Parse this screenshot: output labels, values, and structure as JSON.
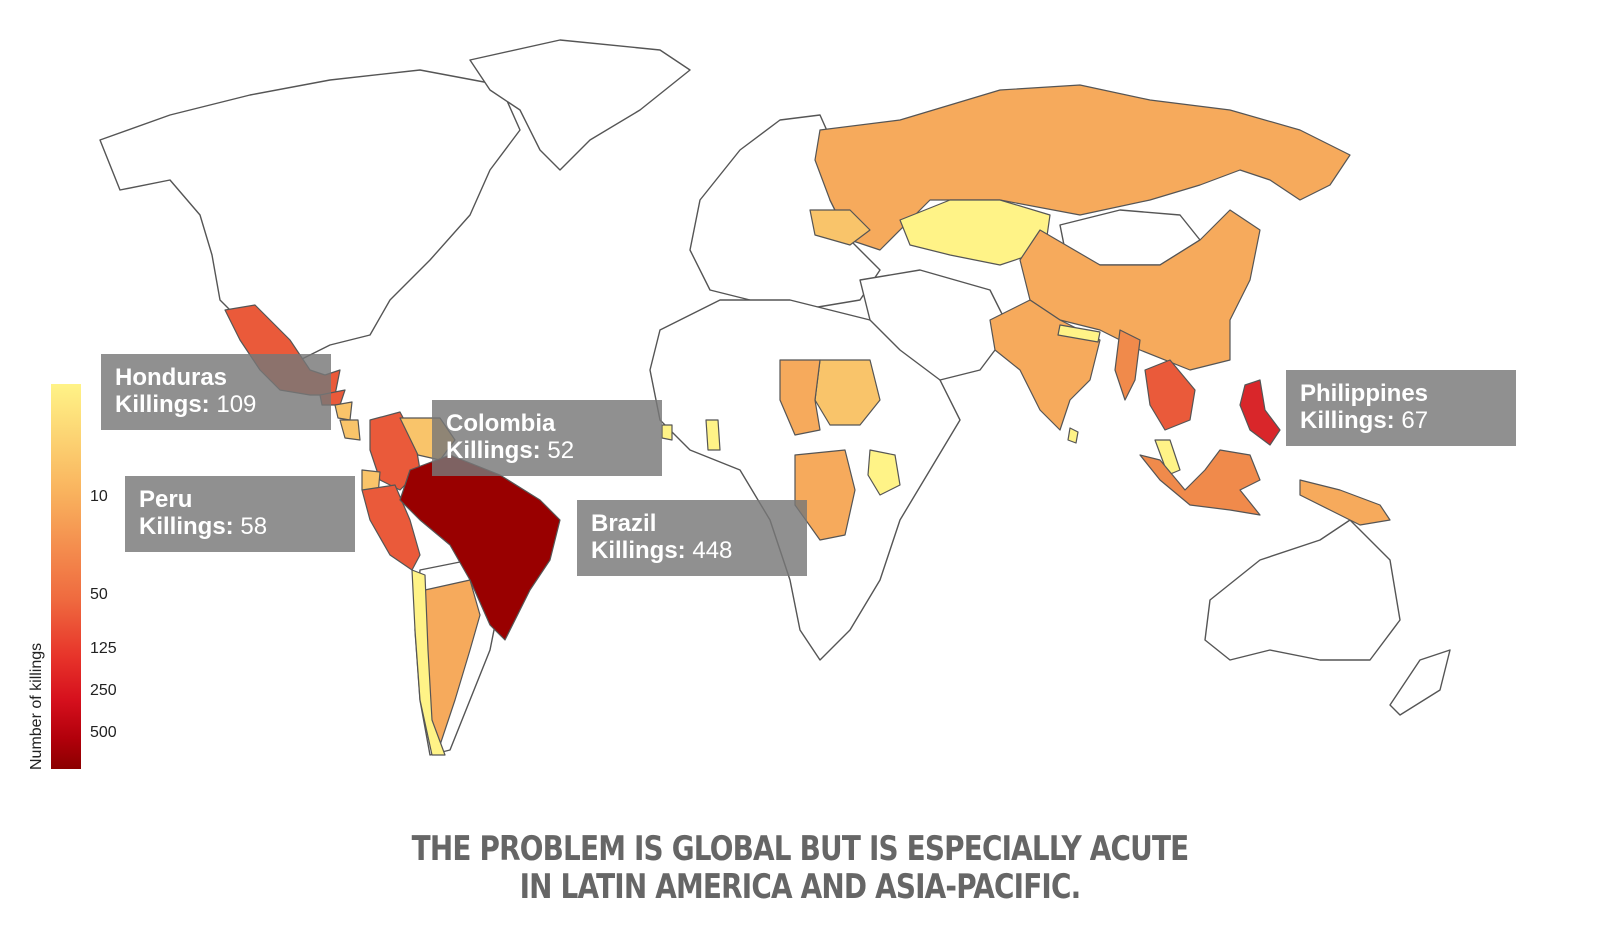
{
  "headline": {
    "line1": "THE PROBLEM IS GLOBAL BUT IS ESPECIALLY ACUTE",
    "line2": "IN LATIN AMERICA AND ASIA-PACIFIC."
  },
  "legend": {
    "title": "Number of killings",
    "ticks": [
      "10",
      "50",
      "125",
      "250",
      "500"
    ],
    "color_low": "#fff387",
    "color_high": "#8b0000"
  },
  "callouts": [
    {
      "name": "Honduras",
      "label": "Killings:",
      "value": "109"
    },
    {
      "name": "Colombia",
      "label": "Killings:",
      "value": "52"
    },
    {
      "name": "Peru",
      "label": "Killings:",
      "value": "58"
    },
    {
      "name": "Brazil",
      "label": "Killings:",
      "value": "448"
    },
    {
      "name": "Philippines",
      "label": "Killings:",
      "value": "67"
    }
  ],
  "colors": {
    "yellow": "#fff387",
    "light_orange": "#f9c46a",
    "orange": "#f6aa5c",
    "deep_orange": "#f08a4b",
    "red_orange": "#ea5a3a",
    "red": "#d9262a",
    "dark_red": "#990000"
  }
}
